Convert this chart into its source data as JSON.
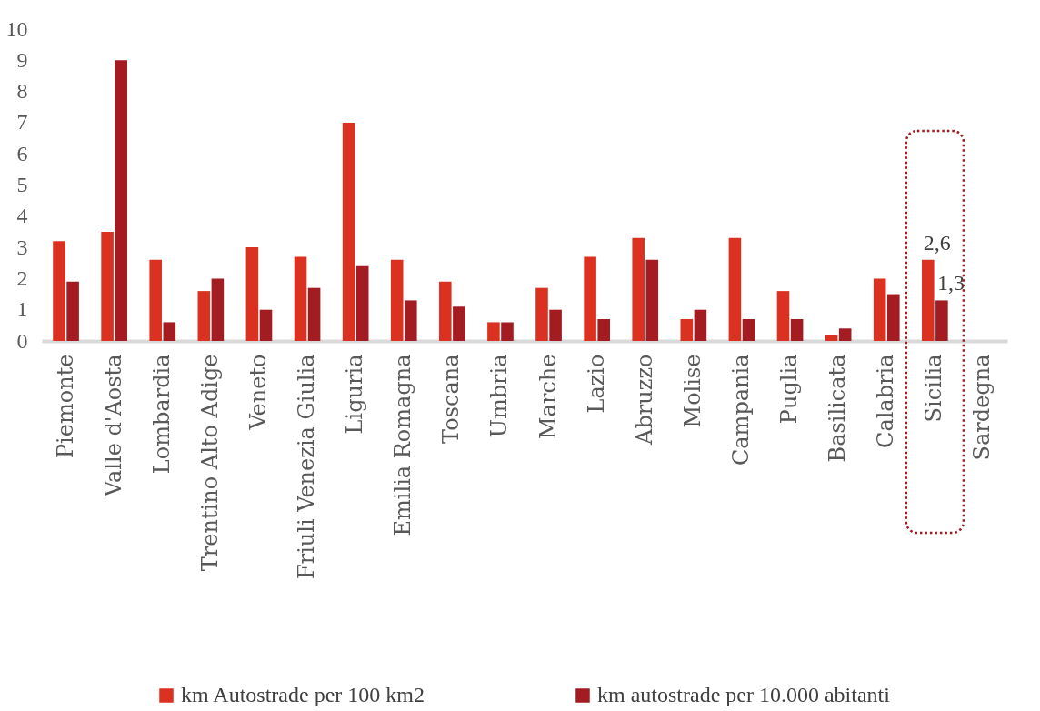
{
  "chart_data": {
    "type": "bar",
    "categories": [
      "Piemonte",
      "Valle d'Aosta",
      "Lombardia",
      "Trentino Alto Adige",
      "Veneto",
      "Friuli Venezia Giulia",
      "Liguria",
      "Emilia Romagna",
      "Toscana",
      "Umbria",
      "Marche",
      "Lazio",
      "Abruzzo",
      "Molise",
      "Campania",
      "Puglia",
      "Basilicata",
      "Calabria",
      "Sicilia",
      "Sardegna"
    ],
    "series": [
      {
        "name": "km Autostrade per 100 km2",
        "color": "#db3120",
        "values": [
          3.2,
          3.5,
          2.6,
          1.6,
          3.0,
          2.7,
          7.0,
          2.6,
          1.9,
          0.6,
          1.7,
          2.7,
          3.3,
          0.7,
          3.3,
          1.6,
          0.2,
          2.0,
          2.6,
          null
        ],
        "value_labels": [
          null,
          null,
          null,
          null,
          null,
          null,
          null,
          null,
          null,
          null,
          null,
          null,
          null,
          null,
          null,
          null,
          null,
          null,
          "2,6",
          null
        ]
      },
      {
        "name": "km autostrade per 10.000 abitanti",
        "color": "#a21c21",
        "values": [
          1.9,
          9.0,
          0.6,
          2.0,
          1.0,
          1.7,
          2.4,
          1.3,
          1.1,
          0.6,
          1.0,
          0.7,
          2.6,
          1.0,
          0.7,
          0.7,
          0.4,
          1.5,
          1.3,
          null
        ],
        "value_labels": [
          null,
          null,
          null,
          null,
          null,
          null,
          null,
          null,
          null,
          null,
          null,
          null,
          null,
          null,
          null,
          null,
          null,
          null,
          "1,3",
          null
        ]
      }
    ],
    "ylim": [
      0,
      10
    ],
    "yticks": [
      0,
      1,
      2,
      3,
      4,
      5,
      6,
      7,
      8,
      9,
      10
    ],
    "grid": false,
    "legend": "bottom"
  }
}
